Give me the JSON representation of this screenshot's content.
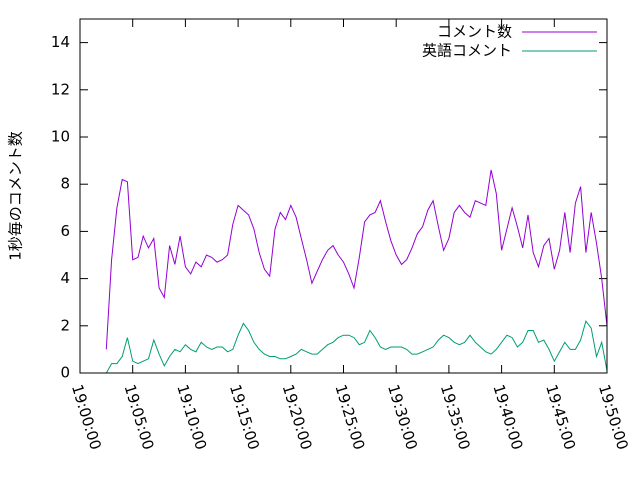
{
  "chart_data": {
    "type": "line",
    "ylabel": "1秒毎のコメント数",
    "x": [
      "19:02:30",
      "19:03:00",
      "19:03:30",
      "19:04:00",
      "19:04:30",
      "19:05:00",
      "19:05:30",
      "19:06:00",
      "19:06:30",
      "19:07:00",
      "19:07:30",
      "19:08:00",
      "19:08:30",
      "19:09:00",
      "19:09:30",
      "19:10:00",
      "19:10:30",
      "19:11:00",
      "19:11:30",
      "19:12:00",
      "19:12:30",
      "19:13:00",
      "19:13:30",
      "19:14:00",
      "19:14:30",
      "19:15:00",
      "19:15:30",
      "19:16:00",
      "19:16:30",
      "19:17:00",
      "19:17:30",
      "19:18:00",
      "19:18:30",
      "19:19:00",
      "19:19:30",
      "19:20:00",
      "19:20:30",
      "19:21:00",
      "19:21:30",
      "19:22:00",
      "19:22:30",
      "19:23:00",
      "19:23:30",
      "19:24:00",
      "19:24:30",
      "19:25:00",
      "19:25:30",
      "19:26:00",
      "19:26:30",
      "19:27:00",
      "19:27:30",
      "19:28:00",
      "19:28:30",
      "19:29:00",
      "19:29:30",
      "19:30:00",
      "19:30:30",
      "19:31:00",
      "19:31:30",
      "19:32:00",
      "19:32:30",
      "19:33:00",
      "19:33:30",
      "19:34:00",
      "19:34:30",
      "19:35:00",
      "19:35:30",
      "19:36:00",
      "19:36:30",
      "19:37:00",
      "19:37:30",
      "19:38:00",
      "19:38:30",
      "19:39:00",
      "19:39:30",
      "19:40:00",
      "19:40:30",
      "19:41:00",
      "19:41:30",
      "19:42:00",
      "19:42:30",
      "19:43:00",
      "19:43:30",
      "19:44:00",
      "19:44:30",
      "19:45:00",
      "19:45:30",
      "19:46:00",
      "19:46:30",
      "19:47:00",
      "19:47:30",
      "19:48:00",
      "19:48:30",
      "19:49:00",
      "19:49:30",
      "19:50:00"
    ],
    "series": [
      {
        "name": "コメント数",
        "color": "#9400d3",
        "values": [
          1.0,
          4.8,
          7.0,
          8.2,
          8.1,
          4.8,
          4.9,
          5.8,
          5.3,
          5.7,
          3.6,
          3.2,
          5.4,
          4.6,
          5.8,
          4.5,
          4.2,
          4.7,
          4.5,
          5.0,
          4.9,
          4.7,
          4.8,
          5.0,
          6.3,
          7.1,
          6.9,
          6.7,
          6.1,
          5.1,
          4.4,
          4.1,
          6.1,
          6.8,
          6.5,
          7.1,
          6.6,
          5.7,
          4.8,
          3.8,
          4.3,
          4.8,
          5.2,
          5.4,
          5.0,
          4.7,
          4.2,
          3.6,
          4.9,
          6.4,
          6.7,
          6.8,
          7.3,
          6.4,
          5.6,
          5.0,
          4.6,
          4.8,
          5.3,
          5.9,
          6.2,
          6.9,
          7.3,
          6.2,
          5.2,
          5.7,
          6.8,
          7.1,
          6.8,
          6.6,
          7.3,
          7.2,
          7.1,
          8.6,
          7.6,
          5.2,
          6.1,
          7.0,
          6.2,
          5.3,
          6.7,
          5.1,
          4.5,
          5.4,
          5.7,
          4.4,
          5.2,
          6.8,
          5.1,
          7.2,
          7.9,
          5.1,
          6.8,
          5.5,
          4.0,
          2.0
        ]
      },
      {
        "name": "英語コメント",
        "color": "#009e73",
        "values": [
          0,
          0.4,
          0.4,
          0.7,
          1.5,
          0.5,
          0.4,
          0.5,
          0.6,
          1.4,
          0.8,
          0.3,
          0.7,
          1.0,
          0.9,
          1.2,
          1.0,
          0.9,
          1.3,
          1.1,
          1.0,
          1.1,
          1.1,
          0.9,
          1.0,
          1.6,
          2.1,
          1.8,
          1.3,
          1.0,
          0.8,
          0.7,
          0.7,
          0.6,
          0.6,
          0.7,
          0.8,
          1.0,
          0.9,
          0.8,
          0.8,
          1.0,
          1.2,
          1.3,
          1.5,
          1.6,
          1.6,
          1.5,
          1.2,
          1.3,
          1.8,
          1.5,
          1.1,
          1.0,
          1.1,
          1.1,
          1.1,
          1.0,
          0.8,
          0.8,
          0.9,
          1.0,
          1.1,
          1.4,
          1.6,
          1.5,
          1.3,
          1.2,
          1.3,
          1.6,
          1.3,
          1.1,
          0.9,
          0.8,
          1.0,
          1.3,
          1.6,
          1.5,
          1.1,
          1.3,
          1.8,
          1.8,
          1.3,
          1.4,
          1.0,
          0.5,
          0.9,
          1.3,
          1.0,
          1.0,
          1.4,
          2.2,
          1.9,
          0.7,
          1.3,
          0.1
        ]
      }
    ],
    "xlim": [
      "19:00:00",
      "19:50:00"
    ],
    "xticks": [
      "19:00:00",
      "19:05:00",
      "19:10:00",
      "19:15:00",
      "19:20:00",
      "19:25:00",
      "19:30:00",
      "19:35:00",
      "19:40:00",
      "19:45:00",
      "19:50:00"
    ],
    "ylim": [
      0,
      15
    ],
    "yticks": [
      0,
      2,
      4,
      6,
      8,
      10,
      12,
      14
    ],
    "legend": "top-right"
  }
}
